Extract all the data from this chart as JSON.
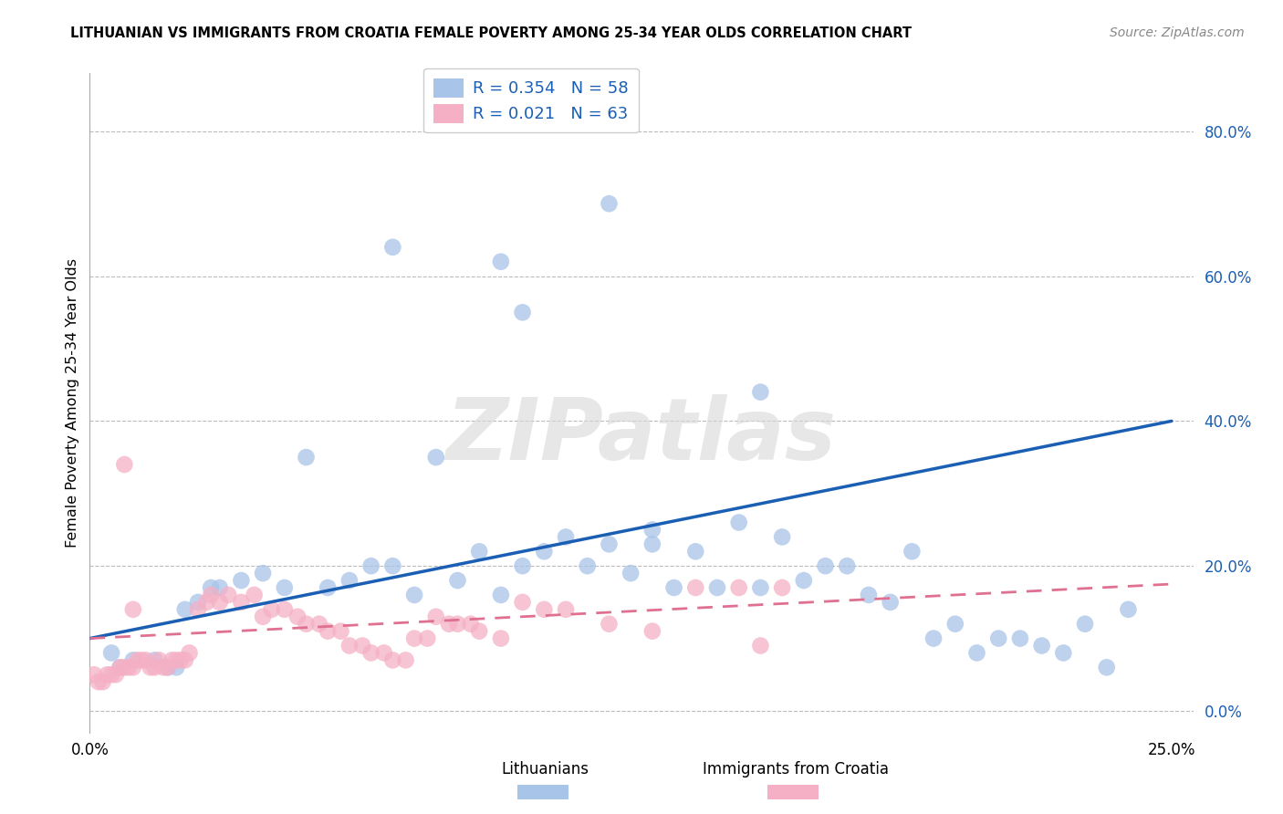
{
  "title": "LITHUANIAN VS IMMIGRANTS FROM CROATIA FEMALE POVERTY AMONG 25-34 YEAR OLDS CORRELATION CHART",
  "source": "Source: ZipAtlas.com",
  "ylabel": "Female Poverty Among 25-34 Year Olds",
  "ytick_vals": [
    0.0,
    0.2,
    0.4,
    0.6,
    0.8
  ],
  "ytick_labels": [
    "0.0%",
    "20.0%",
    "40.0%",
    "60.0%",
    "80.0%"
  ],
  "xtick_vals": [
    0.0,
    0.25
  ],
  "xtick_labels": [
    "0.0%",
    "25.0%"
  ],
  "xlim": [
    0.0,
    0.255
  ],
  "ylim": [
    -0.03,
    0.88
  ],
  "legend_r1": "R = 0.354",
  "legend_n1": "N = 58",
  "legend_r2": "R = 0.021",
  "legend_n2": "N = 63",
  "legend_label_1": "Lithuanians",
  "legend_label_2": "Immigrants from Croatia",
  "color_blue": "#a8c4e8",
  "color_pink": "#f5b0c5",
  "line_color_blue": "#1a5fb4",
  "line_color_pink": "#e07090",
  "watermark_text": "ZIPatlas",
  "grid_color": "#bbbbbb",
  "blue_x": [
    0.005,
    0.007,
    0.01,
    0.015,
    0.018,
    0.02,
    0.022,
    0.025,
    0.028,
    0.03,
    0.035,
    0.04,
    0.045,
    0.05,
    0.055,
    0.06,
    0.065,
    0.07,
    0.075,
    0.08,
    0.085,
    0.09,
    0.095,
    0.1,
    0.105,
    0.11,
    0.115,
    0.12,
    0.125,
    0.13,
    0.135,
    0.14,
    0.145,
    0.15,
    0.155,
    0.16,
    0.165,
    0.17,
    0.175,
    0.18,
    0.185,
    0.19,
    0.195,
    0.2,
    0.205,
    0.21,
    0.215,
    0.22,
    0.225,
    0.23,
    0.235,
    0.24,
    0.095,
    0.13,
    0.07,
    0.1,
    0.12,
    0.155
  ],
  "blue_y": [
    0.08,
    0.06,
    0.07,
    0.07,
    0.06,
    0.06,
    0.14,
    0.15,
    0.17,
    0.17,
    0.18,
    0.19,
    0.17,
    0.35,
    0.17,
    0.18,
    0.2,
    0.2,
    0.16,
    0.35,
    0.18,
    0.22,
    0.16,
    0.2,
    0.22,
    0.24,
    0.2,
    0.23,
    0.19,
    0.23,
    0.17,
    0.22,
    0.17,
    0.26,
    0.17,
    0.24,
    0.18,
    0.2,
    0.2,
    0.16,
    0.15,
    0.22,
    0.1,
    0.12,
    0.08,
    0.1,
    0.1,
    0.09,
    0.08,
    0.12,
    0.06,
    0.14,
    0.62,
    0.25,
    0.64,
    0.55,
    0.7,
    0.44
  ],
  "pink_x": [
    0.001,
    0.002,
    0.003,
    0.004,
    0.005,
    0.006,
    0.007,
    0.008,
    0.009,
    0.01,
    0.011,
    0.012,
    0.013,
    0.014,
    0.015,
    0.016,
    0.017,
    0.018,
    0.019,
    0.02,
    0.021,
    0.022,
    0.023,
    0.025,
    0.027,
    0.028,
    0.03,
    0.032,
    0.035,
    0.038,
    0.04,
    0.042,
    0.045,
    0.048,
    0.05,
    0.053,
    0.055,
    0.058,
    0.06,
    0.063,
    0.065,
    0.068,
    0.07,
    0.073,
    0.075,
    0.078,
    0.08,
    0.083,
    0.085,
    0.088,
    0.09,
    0.095,
    0.1,
    0.105,
    0.11,
    0.12,
    0.13,
    0.14,
    0.15,
    0.155,
    0.008,
    0.01,
    0.16
  ],
  "pink_y": [
    0.05,
    0.04,
    0.04,
    0.05,
    0.05,
    0.05,
    0.06,
    0.06,
    0.06,
    0.06,
    0.07,
    0.07,
    0.07,
    0.06,
    0.06,
    0.07,
    0.06,
    0.06,
    0.07,
    0.07,
    0.07,
    0.07,
    0.08,
    0.14,
    0.15,
    0.16,
    0.15,
    0.16,
    0.15,
    0.16,
    0.13,
    0.14,
    0.14,
    0.13,
    0.12,
    0.12,
    0.11,
    0.11,
    0.09,
    0.09,
    0.08,
    0.08,
    0.07,
    0.07,
    0.1,
    0.1,
    0.13,
    0.12,
    0.12,
    0.12,
    0.11,
    0.1,
    0.15,
    0.14,
    0.14,
    0.12,
    0.11,
    0.17,
    0.17,
    0.09,
    0.34,
    0.14,
    0.17
  ]
}
